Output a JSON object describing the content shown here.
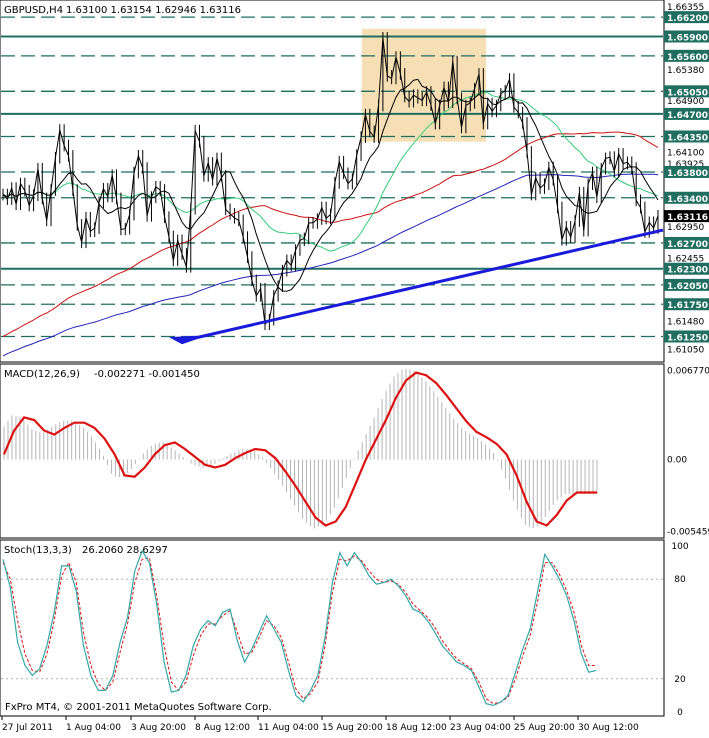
{
  "header": {
    "title": "GBPUSD,H4",
    "ohlc": "1.63100 1.63154 1.62946 1.63116"
  },
  "macd_header": {
    "title": "MACD(12,26,9)",
    "values": "-0.002271 -0.001450"
  },
  "stoch_header": {
    "title": "Stoch(13,3,3)",
    "values": "26.2060 28.6297"
  },
  "copyright": "FxPro MT4, © 2001-2011 MetaQuotes Software Corp.",
  "current_price": "1.63116",
  "colors": {
    "price_line": "#000000",
    "trendline": "#1a1adb",
    "horizontal_levels": "#1f6e60",
    "shaded_zone": "#f5d9a8",
    "ma_green": "#33cc77",
    "ma_red": "#cc1111",
    "ma_blue": "#2222bb",
    "ma_black": "#000000",
    "macd_signal": "#dd1111",
    "macd_hist": "#b5b5b5",
    "stoch_main": "#33a8a8",
    "stoch_signal": "#dd1111"
  },
  "chart_data": [
    {
      "type": "candlestick",
      "title": "GBPUSD,H4",
      "y_ticks": [
        "1.66355",
        "1.65380",
        "1.64900",
        "1.64100",
        "1.63925",
        "1.62950",
        "1.62455",
        "1.61480",
        "1.61050"
      ],
      "level_labels": [
        "1.66200",
        "1.65900",
        "1.65600",
        "1.65050",
        "1.64700",
        "1.64350",
        "1.63800",
        "1.63400",
        "1.62700",
        "1.62300",
        "1.62050",
        "1.61750",
        "1.61250"
      ],
      "ylim": [
        1.6087,
        1.6645
      ],
      "levels_solid": [
        1.659,
        1.647,
        1.623
      ],
      "levels_dashed": [
        1.662,
        1.656,
        1.6505,
        1.6435,
        1.638,
        1.634,
        1.627,
        1.6205,
        1.6175,
        1.6125
      ],
      "x_labels": [
        "27 Jul 2011",
        "1 Aug 04:00",
        "3 Aug 20:00",
        "8 Aug 12:00",
        "11 Aug 04:00",
        "15 Aug 20:00",
        "18 Aug 12:00",
        "23 Aug 04:00",
        "25 Aug 20:00",
        "30 Aug 12:00"
      ],
      "close": [
        1.6345,
        1.6338,
        1.6355,
        1.633,
        1.6362,
        1.6351,
        1.6328,
        1.6344,
        1.6385,
        1.6339,
        1.6305,
        1.6352,
        1.6402,
        1.6445,
        1.6421,
        1.6405,
        1.6352,
        1.6298,
        1.6271,
        1.6309,
        1.6288,
        1.6293,
        1.6333,
        1.6354,
        1.6342,
        1.6375,
        1.6339,
        1.6291,
        1.6292,
        1.6314,
        1.6379,
        1.6405,
        1.6386,
        1.6312,
        1.6341,
        1.6357,
        1.6352,
        1.631,
        1.628,
        1.6243,
        1.6274,
        1.6253,
        1.6233,
        1.6323,
        1.6444,
        1.6427,
        1.6374,
        1.6394,
        1.6368,
        1.6401,
        1.6374,
        1.6322,
        1.6315,
        1.6309,
        1.6305,
        1.6279,
        1.6248,
        1.6212,
        1.6188,
        1.6199,
        1.6144,
        1.6151,
        1.6188,
        1.6203,
        1.6227,
        1.6243,
        1.6235,
        1.6259,
        1.6274,
        1.6277,
        1.6301,
        1.6301,
        1.6307,
        1.6325,
        1.6308,
        1.6314,
        1.6363,
        1.6396,
        1.6378,
        1.6362,
        1.6369,
        1.6406,
        1.6434,
        1.6469,
        1.6443,
        1.6434,
        1.6483,
        1.6588,
        1.6529,
        1.6525,
        1.6558,
        1.6532,
        1.6497,
        1.6489,
        1.6499,
        1.6495,
        1.6491,
        1.6504,
        1.6484,
        1.6455,
        1.6483,
        1.6511,
        1.6488,
        1.6551,
        1.6494,
        1.6449,
        1.6483,
        1.6487,
        1.6509,
        1.6532,
        1.6455,
        1.6486,
        1.6474,
        1.6483,
        1.6501,
        1.6506,
        1.6524,
        1.6481,
        1.6472,
        1.6456,
        1.6411,
        1.6345,
        1.6371,
        1.6355,
        1.6361,
        1.6387,
        1.6368,
        1.6325,
        1.6275,
        1.6295,
        1.6279,
        1.6304,
        1.6348,
        1.6289,
        1.6361,
        1.6379,
        1.6341,
        1.6385,
        1.6401,
        1.6403,
        1.6381,
        1.6408,
        1.6393,
        1.6395,
        1.6386,
        1.6336,
        1.6325,
        1.6287,
        1.6302,
        1.6293,
        1.6312
      ]
    },
    {
      "type": "line",
      "title": "MACD(12,26,9)",
      "y_ticks": [
        "0.006770",
        "0.00",
        "-0.005459"
      ],
      "ylim": [
        -0.0058,
        0.0071
      ],
      "signal": [
        0.0004,
        0.0022,
        0.0032,
        0.003,
        0.0022,
        0.0019,
        0.0024,
        0.0028,
        0.0028,
        0.0024,
        0.0016,
        0.0004,
        -0.0012,
        -0.0013,
        -0.0006,
        0.0004,
        0.0011,
        0.0013,
        0.0008,
        0.0002,
        -0.0004,
        -0.0006,
        -0.0004,
        0.0001,
        0.0005,
        0.0008,
        0.0007,
        0.0001,
        -0.0009,
        -0.002,
        -0.0032,
        -0.0044,
        -0.005,
        -0.0047,
        -0.0036,
        -0.0018,
        0.0,
        0.0015,
        0.003,
        0.0047,
        0.006,
        0.0066,
        0.0064,
        0.0058,
        0.0049,
        0.0039,
        0.0029,
        0.0021,
        0.0017,
        0.0012,
        0.0004,
        -0.0012,
        -0.0032,
        -0.0047,
        -0.005,
        -0.0042,
        -0.0031,
        -0.0025,
        -0.0025,
        -0.0025
      ],
      "histogram_note": "grey bars trace the MACD line"
    },
    {
      "type": "line",
      "title": "Stoch(13,3,3)",
      "y_ticks": [
        "100",
        "80",
        "20",
        "0"
      ],
      "ylim": [
        0,
        100
      ],
      "main": [
        92,
        75,
        42,
        28,
        22,
        26,
        40,
        60,
        88,
        88,
        73,
        40,
        22,
        13,
        13,
        22,
        42,
        57,
        85,
        97,
        90,
        65,
        30,
        12,
        13,
        22,
        40,
        50,
        55,
        52,
        60,
        62,
        43,
        30,
        38,
        48,
        58,
        50,
        42,
        25,
        10,
        6,
        13,
        22,
        45,
        78,
        96,
        88,
        96,
        90,
        82,
        77,
        78,
        80,
        76,
        70,
        62,
        60,
        55,
        48,
        40,
        35,
        30,
        28,
        25,
        15,
        5,
        4,
        6,
        10,
        24,
        38,
        50,
        72,
        95,
        88,
        80,
        70,
        55,
        35,
        24,
        25
      ],
      "signal": [
        90,
        80,
        55,
        35,
        25,
        24,
        35,
        55,
        82,
        90,
        78,
        48,
        28,
        17,
        13,
        18,
        36,
        53,
        78,
        92,
        93,
        70,
        40,
        18,
        13,
        18,
        34,
        46,
        53,
        53,
        58,
        61,
        48,
        35,
        36,
        45,
        55,
        52,
        45,
        30,
        14,
        8,
        11,
        18,
        40,
        72,
        92,
        91,
        94,
        91,
        85,
        80,
        78,
        79,
        77,
        72,
        65,
        61,
        57,
        51,
        43,
        37,
        32,
        29,
        26,
        18,
        8,
        5,
        6,
        9,
        20,
        34,
        46,
        66,
        90,
        90,
        83,
        73,
        60,
        40,
        28,
        28
      ]
    }
  ]
}
